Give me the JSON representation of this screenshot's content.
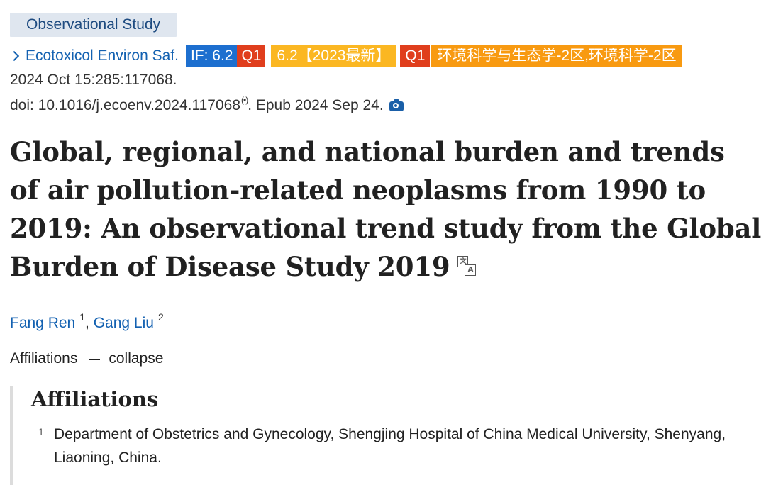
{
  "article_type": "Observational Study",
  "journal": {
    "name": "Ecotoxicol Environ Saf.",
    "badges": {
      "if": "IF: 6.2",
      "q1_first": "Q1",
      "if_2023": "6.2【2023最新】",
      "q1_second": "Q1",
      "category": "环境科学与生态学-2区,环境科学-2区"
    }
  },
  "citation": {
    "date_volume": "2024 Oct 15:285:117068.",
    "doi_text": "doi: 10.1016/j.ecoenv.2024.117068",
    "epub_text": ". Epub 2024 Sep 24.",
    "doi_icon": "(•)"
  },
  "title": "Global, regional, and national burden and trends of air pollution-related neoplasms from 1990 to 2019: An observational trend study from the Global Burden of Disease Study 2019",
  "translate_icon": {
    "box1": "文",
    "box2": "A"
  },
  "authors": [
    {
      "name": "Fang Ren",
      "aff": "1"
    },
    {
      "name": "Gang Liu",
      "aff": "2"
    }
  ],
  "author_separator": ",",
  "affiliations_toggle": {
    "label": "Affiliations",
    "action": "collapse"
  },
  "affiliations_panel": {
    "heading": "Affiliations",
    "items": [
      {
        "num": "1",
        "text": "Department of Obstetrics and Gynecology, Shengjing Hospital of China Medical University, Shenyang, Liaoning, China."
      }
    ]
  },
  "colors": {
    "link": "#1361b1",
    "if_badge": "#1d6fcf",
    "q1_badge": "#e03e1d",
    "if2023_badge": "#fbb722",
    "category_badge": "#f89a11",
    "article_type_bg": "#dfe6ef"
  }
}
